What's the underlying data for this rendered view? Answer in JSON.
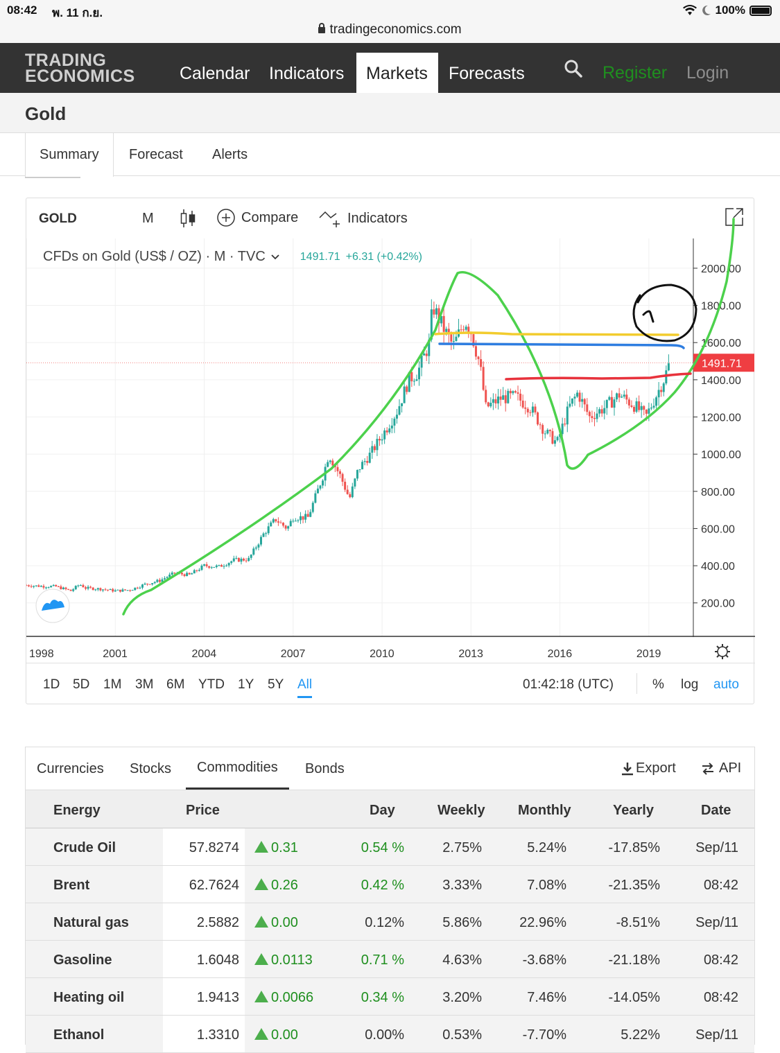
{
  "statusbar": {
    "time": "08:42",
    "date": "พ. 11 ก.ย.",
    "battery": "100%"
  },
  "browser": {
    "url": "tradingeconomics.com"
  },
  "nav": {
    "logo_line1": "TRADING",
    "logo_line2": "ECONOMICS",
    "items": [
      "Calendar",
      "Indicators",
      "Markets",
      "Forecasts"
    ],
    "active": "Markets",
    "register": "Register",
    "login": "Login"
  },
  "page": {
    "title": "Gold"
  },
  "subtabs": [
    "Summary",
    "Forecast",
    "Alerts"
  ],
  "chart_toolbar": {
    "symbol": "GOLD",
    "interval": "M",
    "compare": "Compare",
    "indicators": "Indicators"
  },
  "chart_legend": {
    "title": "CFDs on Gold (US$ / OZ) · M · TVC",
    "last": "1491.71",
    "change": "+6.31 (+0.42%)"
  },
  "chart_data": {
    "type": "candlestick",
    "title": "CFDs on Gold (US$ / OZ) · M · TVC",
    "x_ticks": [
      "1998",
      "2001",
      "2004",
      "2007",
      "2010",
      "2013",
      "2016",
      "2019"
    ],
    "y_ticks": [
      "200.00",
      "400.00",
      "600.00",
      "800.00",
      "1000.00",
      "1200.00",
      "1400.00",
      "1600.00",
      "1800.00",
      "2000.00"
    ],
    "ylim": [
      20,
      2160
    ],
    "xlim": [
      1998.0,
      2020.5
    ],
    "last_price_label": "1491.71",
    "series": [
      {
        "x": [
          1998.0,
          1998.5,
          1999.0,
          1999.5,
          1999.8,
          2000.0,
          2000.5,
          2001.0,
          2001.5,
          2002.0,
          2002.5,
          2003.0,
          2003.5,
          2004.0,
          2004.5,
          2005.0,
          2005.5,
          2006.0,
          2006.4,
          2006.8,
          2007.0,
          2007.5,
          2008.0,
          2008.2,
          2008.6,
          2008.9,
          2009.2,
          2009.6,
          2010.0,
          2010.5,
          2010.9,
          2011.2,
          2011.6,
          2011.7,
          2012.0,
          2012.4,
          2012.8,
          2013.0,
          2013.3,
          2013.5,
          2014.0,
          2014.5,
          2015.0,
          2015.5,
          2015.9,
          2016.3,
          2016.6,
          2017.0,
          2017.5,
          2018.0,
          2018.6,
          2018.9,
          2019.2,
          2019.5,
          2019.7
        ],
        "close": [
          295,
          290,
          288,
          265,
          300,
          280,
          275,
          265,
          270,
          300,
          320,
          360,
          350,
          400,
          395,
          430,
          435,
          570,
          650,
          600,
          660,
          660,
          880,
          1000,
          880,
          760,
          920,
          1000,
          1100,
          1230,
          1400,
          1440,
          1600,
          1800,
          1700,
          1580,
          1720,
          1660,
          1480,
          1250,
          1300,
          1310,
          1250,
          1120,
          1060,
          1250,
          1330,
          1200,
          1250,
          1320,
          1250,
          1200,
          1300,
          1400,
          1491.71
        ]
      }
    ],
    "annotations": {
      "overlay_lines": [
        "green",
        "yellow",
        "blue",
        "red",
        "black"
      ]
    }
  },
  "chart_bottom": {
    "ranges": [
      "1D",
      "5D",
      "1M",
      "3M",
      "6M",
      "YTD",
      "1Y",
      "5Y",
      "All"
    ],
    "active_range": "All",
    "clock": "01:42:18 (UTC)",
    "percent": "%",
    "log": "log",
    "auto": "auto"
  },
  "table": {
    "tabs": [
      "Currencies",
      "Stocks",
      "Commodities",
      "Bonds"
    ],
    "active_tab": "Commodities",
    "export": "Export",
    "api": "API",
    "headers": [
      "Energy",
      "Price",
      "Day",
      "Weekly",
      "Monthly",
      "Yearly",
      "Date"
    ],
    "rows": [
      {
        "name": "Crude Oil",
        "price": "57.8274",
        "change": "0.31",
        "day": "0.54 %",
        "weekly": "2.75%",
        "monthly": "5.24%",
        "yearly": "-17.85%",
        "date": "Sep/11"
      },
      {
        "name": "Brent",
        "price": "62.7624",
        "change": "0.26",
        "day": "0.42 %",
        "weekly": "3.33%",
        "monthly": "7.08%",
        "yearly": "-21.35%",
        "date": "08:42"
      },
      {
        "name": "Natural gas",
        "price": "2.5882",
        "change": "0.00",
        "day": "0.12%",
        "weekly": "5.86%",
        "monthly": "22.96%",
        "yearly": "-8.51%",
        "date": "Sep/11"
      },
      {
        "name": "Gasoline",
        "price": "1.6048",
        "change": "0.0113",
        "day": "0.71 %",
        "weekly": "4.63%",
        "monthly": "-3.68%",
        "yearly": "-21.18%",
        "date": "08:42"
      },
      {
        "name": "Heating oil",
        "price": "1.9413",
        "change": "0.0066",
        "day": "0.34 %",
        "weekly": "3.20%",
        "monthly": "7.46%",
        "yearly": "-14.05%",
        "date": "08:42"
      },
      {
        "name": "Ethanol",
        "price": "1.3310",
        "change": "0.00",
        "day": "0.00%",
        "weekly": "0.53%",
        "monthly": "-7.70%",
        "yearly": "5.22%",
        "date": "Sep/11"
      }
    ]
  },
  "colors": {
    "up": "#26a69a",
    "down": "#ef5350",
    "green_change": "#1f8f1f",
    "accent": "#2196f3"
  }
}
